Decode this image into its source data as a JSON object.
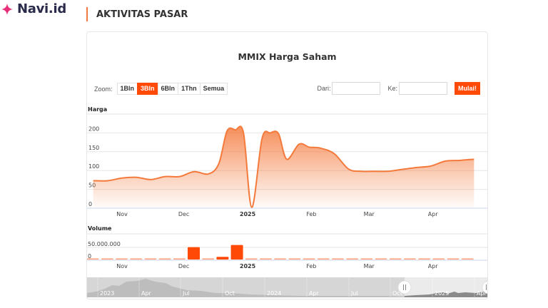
{
  "header": {
    "logo_text": "Navi.id",
    "section_title": "AKTIVITAS PASAR"
  },
  "chart": {
    "title": "MMIX Harga Saham",
    "zoom_label": "Zoom:",
    "zoom_buttons": [
      "1Bln",
      "3Bln",
      "6Bln",
      "1Thn",
      "Semua"
    ],
    "zoom_active": "3Bln",
    "from_label": "Dari:",
    "from_value": "",
    "to_label": "Ke:",
    "to_value": "",
    "go_label": "Mulai!",
    "price_axis_title": "Harga",
    "volume_axis_title": "Volume",
    "volume_ticks": [
      "50.000.000",
      "0"
    ],
    "navigator_ticks": [
      "2023",
      "Apr",
      "Jul",
      "Oct",
      "2024",
      "Apr",
      "Jul",
      "Oct",
      "2025",
      "Apr"
    ],
    "accent_color": "#fe4a06",
    "line_color": "#f47a3c"
  },
  "chart_data": [
    {
      "type": "area",
      "title": "MMIX Harga Saham",
      "ylabel": "Harga",
      "xlabel": "",
      "ylim": [
        0,
        250
      ],
      "yticks": [
        0,
        50,
        100,
        150,
        200
      ],
      "grid": true,
      "xtick_labels": [
        "Nov",
        "Dec",
        "2025",
        "Feb",
        "Mar",
        "Apr"
      ],
      "x": [
        "2024-10-18",
        "2024-10-25",
        "2024-11-01",
        "2024-11-08",
        "2024-11-15",
        "2024-11-22",
        "2024-11-29",
        "2024-12-06",
        "2024-12-13",
        "2024-12-18",
        "2024-12-22",
        "2024-12-26",
        "2024-12-30",
        "2025-01-03",
        "2025-01-08",
        "2025-01-12",
        "2025-01-16",
        "2025-01-20",
        "2025-01-26",
        "2025-01-31",
        "2025-02-05",
        "2025-02-12",
        "2025-02-19",
        "2025-02-25",
        "2025-03-03",
        "2025-03-10",
        "2025-03-17",
        "2025-03-24",
        "2025-03-31",
        "2025-04-07",
        "2025-04-14",
        "2025-04-21"
      ],
      "values": [
        73,
        73,
        80,
        82,
        76,
        84,
        84,
        97,
        91,
        118,
        205,
        208,
        200,
        2,
        185,
        200,
        198,
        130,
        170,
        162,
        160,
        145,
        104,
        98,
        98,
        98,
        103,
        108,
        112,
        125,
        127,
        130
      ]
    },
    {
      "type": "bar",
      "title": "Volume",
      "ylabel": "Volume",
      "yticks": [
        0,
        50000000
      ],
      "xtick_labels": [
        "Nov",
        "Dec",
        "2025",
        "Feb",
        "Mar",
        "Apr"
      ],
      "x": [
        "2024-10-18",
        "2024-10-25",
        "2024-11-01",
        "2024-11-08",
        "2024-11-15",
        "2024-11-22",
        "2024-11-29",
        "2024-12-06",
        "2024-12-13",
        "2024-12-20",
        "2024-12-27",
        "2025-01-03",
        "2025-01-10",
        "2025-01-17",
        "2025-01-24",
        "2025-01-31",
        "2025-02-07",
        "2025-02-14",
        "2025-02-21",
        "2025-02-28",
        "2025-03-07",
        "2025-03-14",
        "2025-03-21",
        "2025-03-28",
        "2025-04-04",
        "2025-04-11",
        "2025-04-18"
      ],
      "values": [
        500000,
        300000,
        300000,
        300000,
        300000,
        300000,
        300000,
        51000000,
        3000000,
        11000000,
        60000000,
        300000,
        300000,
        300000,
        2500000,
        300000,
        300000,
        300000,
        1500000,
        3500000,
        300000,
        300000,
        300000,
        300000,
        300000,
        300000,
        300000
      ]
    }
  ]
}
